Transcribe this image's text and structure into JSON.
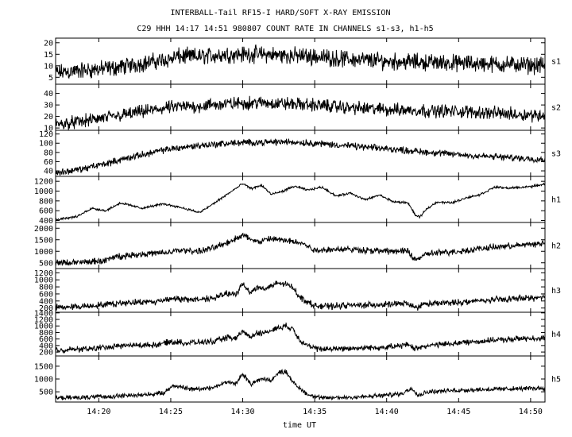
{
  "chart_data": {
    "type": "line",
    "title": "INTERBALL-Tail RF15-I HARD/SOFT X-RAY EMISSION",
    "subtitle": "C29 HHH 14:17 14:51 980807  COUNT RATE IN CHANNELS s1-s3, h1-h5",
    "xlabel": "time UT",
    "x_unit": "minutes after 14:00 UT",
    "xlim": [
      17,
      51
    ],
    "x_ticks": [
      20,
      25,
      30,
      35,
      40,
      45,
      50
    ],
    "x_tick_labels": [
      "14:20",
      "14:25",
      "14:30",
      "14:35",
      "14:40",
      "14:45",
      "14:50"
    ],
    "grid": false,
    "series": [
      {
        "name": "s1",
        "ylim": [
          2,
          22
        ],
        "y_ticks": [
          5,
          10,
          15,
          20
        ],
        "profile_x": [
          17,
          19,
          21,
          23,
          25,
          25.5,
          27,
          29,
          30,
          31,
          33,
          35,
          37,
          40,
          43,
          46,
          49,
          51
        ],
        "profile_y": [
          7,
          8,
          9,
          11,
          13,
          14,
          14,
          15,
          15,
          15,
          14.5,
          14,
          13,
          12,
          11.5,
          11,
          10.5,
          10
        ],
        "noise": 4.5
      },
      {
        "name": "s2",
        "ylim": [
          8,
          48
        ],
        "y_ticks": [
          10,
          20,
          30,
          40
        ],
        "profile_x": [
          17,
          19,
          21,
          23,
          25,
          27,
          29,
          31,
          33,
          35,
          37,
          40,
          43,
          46,
          49,
          51
        ],
        "profile_y": [
          13,
          16,
          20,
          24,
          28,
          29,
          31,
          32,
          31,
          30,
          28,
          26,
          25,
          24,
          22,
          21
        ],
        "noise": 7
      },
      {
        "name": "s3",
        "ylim": [
          28,
          128
        ],
        "y_ticks": [
          40,
          60,
          80,
          100,
          120
        ],
        "profile_x": [
          17,
          19,
          21,
          23,
          25,
          27,
          29,
          31,
          33,
          35,
          37,
          40,
          43,
          46,
          49,
          51
        ],
        "profile_y": [
          35,
          45,
          60,
          75,
          88,
          95,
          100,
          102,
          103,
          100,
          95,
          88,
          80,
          73,
          68,
          65
        ],
        "noise": 9
      },
      {
        "name": "h1",
        "ylim": [
          360,
          1300
        ],
        "y_ticks": [
          400,
          600,
          800,
          1000,
          1200
        ],
        "profile_x": [
          17,
          18.5,
          19.5,
          20.5,
          21.5,
          23,
          24.5,
          25.5,
          26.3,
          27,
          28,
          29,
          30,
          30.6,
          31.3,
          32,
          32.8,
          33.6,
          34.5,
          35.5,
          36.5,
          37.5,
          38.5,
          39.5,
          40.5,
          41.5,
          42,
          42.3,
          42.8,
          43.5,
          44.5,
          45.5,
          46.5,
          47.5,
          48.5,
          49.5,
          50.5,
          51
        ],
        "profile_y": [
          420,
          480,
          650,
          600,
          760,
          650,
          740,
          680,
          620,
          560,
          750,
          950,
          1150,
          1050,
          1120,
          930,
          1000,
          1100,
          1020,
          1080,
          900,
          960,
          820,
          920,
          780,
          760,
          500,
          470,
          640,
          780,
          760,
          860,
          930,
          1080,
          1060,
          1080,
          1110,
          1150
        ],
        "noise": 28
      },
      {
        "name": "h2",
        "ylim": [
          250,
          2250
        ],
        "y_ticks": [
          500,
          1000,
          1500,
          2000
        ],
        "profile_x": [
          17,
          19,
          20.5,
          21,
          23,
          25,
          25.5,
          27,
          28,
          29,
          30,
          31,
          32,
          33,
          34,
          35,
          37,
          40,
          41.5,
          42,
          42.5,
          43,
          45,
          47,
          49,
          51
        ],
        "profile_y": [
          500,
          520,
          600,
          750,
          880,
          950,
          1050,
          1000,
          1150,
          1400,
          1700,
          1400,
          1550,
          1450,
          1400,
          1050,
          1100,
          1000,
          1000,
          620,
          800,
          900,
          1000,
          1150,
          1250,
          1350
        ],
        "noise": 170
      },
      {
        "name": "h3",
        "ylim": [
          80,
          1320
        ],
        "y_ticks": [
          200,
          400,
          600,
          800,
          1000,
          1200
        ],
        "profile_x": [
          17,
          19,
          20.5,
          22,
          24,
          25,
          26,
          28,
          29,
          29.5,
          30,
          30.5,
          31,
          31.5,
          32.5,
          33,
          33.5,
          34,
          34.5,
          35,
          36,
          37,
          40,
          41.5,
          42,
          42.5,
          43,
          45,
          47,
          49,
          51
        ],
        "profile_y": [
          220,
          250,
          300,
          360,
          380,
          480,
          430,
          480,
          620,
          560,
          900,
          650,
          780,
          750,
          900,
          880,
          780,
          500,
          380,
          260,
          250,
          270,
          300,
          330,
          200,
          300,
          320,
          360,
          420,
          470,
          500
        ],
        "noise": 110
      },
      {
        "name": "h4",
        "ylim": [
          80,
          1420
        ],
        "y_ticks": [
          200,
          400,
          600,
          800,
          1000,
          1200,
          1400
        ],
        "profile_x": [
          17,
          19,
          20.5,
          22,
          24,
          25,
          26,
          28,
          29,
          29.5,
          30,
          30.5,
          31,
          31.5,
          32.5,
          33,
          33.5,
          34,
          34.5,
          35,
          36,
          37,
          40,
          41.5,
          42,
          42.5,
          43,
          45,
          47,
          49,
          51
        ],
        "profile_y": [
          260,
          290,
          350,
          400,
          420,
          520,
          480,
          520,
          650,
          600,
          850,
          650,
          800,
          780,
          950,
          1000,
          900,
          550,
          420,
          300,
          290,
          310,
          350,
          420,
          300,
          380,
          400,
          480,
          550,
          600,
          640
        ],
        "noise": 110
      },
      {
        "name": "h5",
        "ylim": [
          100,
          1900
        ],
        "y_ticks": [
          500,
          1000,
          1500
        ],
        "profile_x": [
          17,
          19,
          21,
          23,
          24.5,
          25.2,
          26.5,
          28,
          29,
          29.5,
          30,
          30.6,
          31.2,
          32,
          32.5,
          33,
          33.6,
          34.5,
          35.5,
          37,
          39,
          41,
          41.8,
          42.2,
          42.8,
          45,
          47,
          49,
          51
        ],
        "profile_y": [
          250,
          280,
          330,
          380,
          450,
          750,
          600,
          680,
          900,
          800,
          1200,
          800,
          1000,
          950,
          1250,
          1300,
          800,
          400,
          250,
          280,
          320,
          420,
          650,
          350,
          500,
          560,
          600,
          620,
          650
        ],
        "noise": 110
      }
    ]
  }
}
